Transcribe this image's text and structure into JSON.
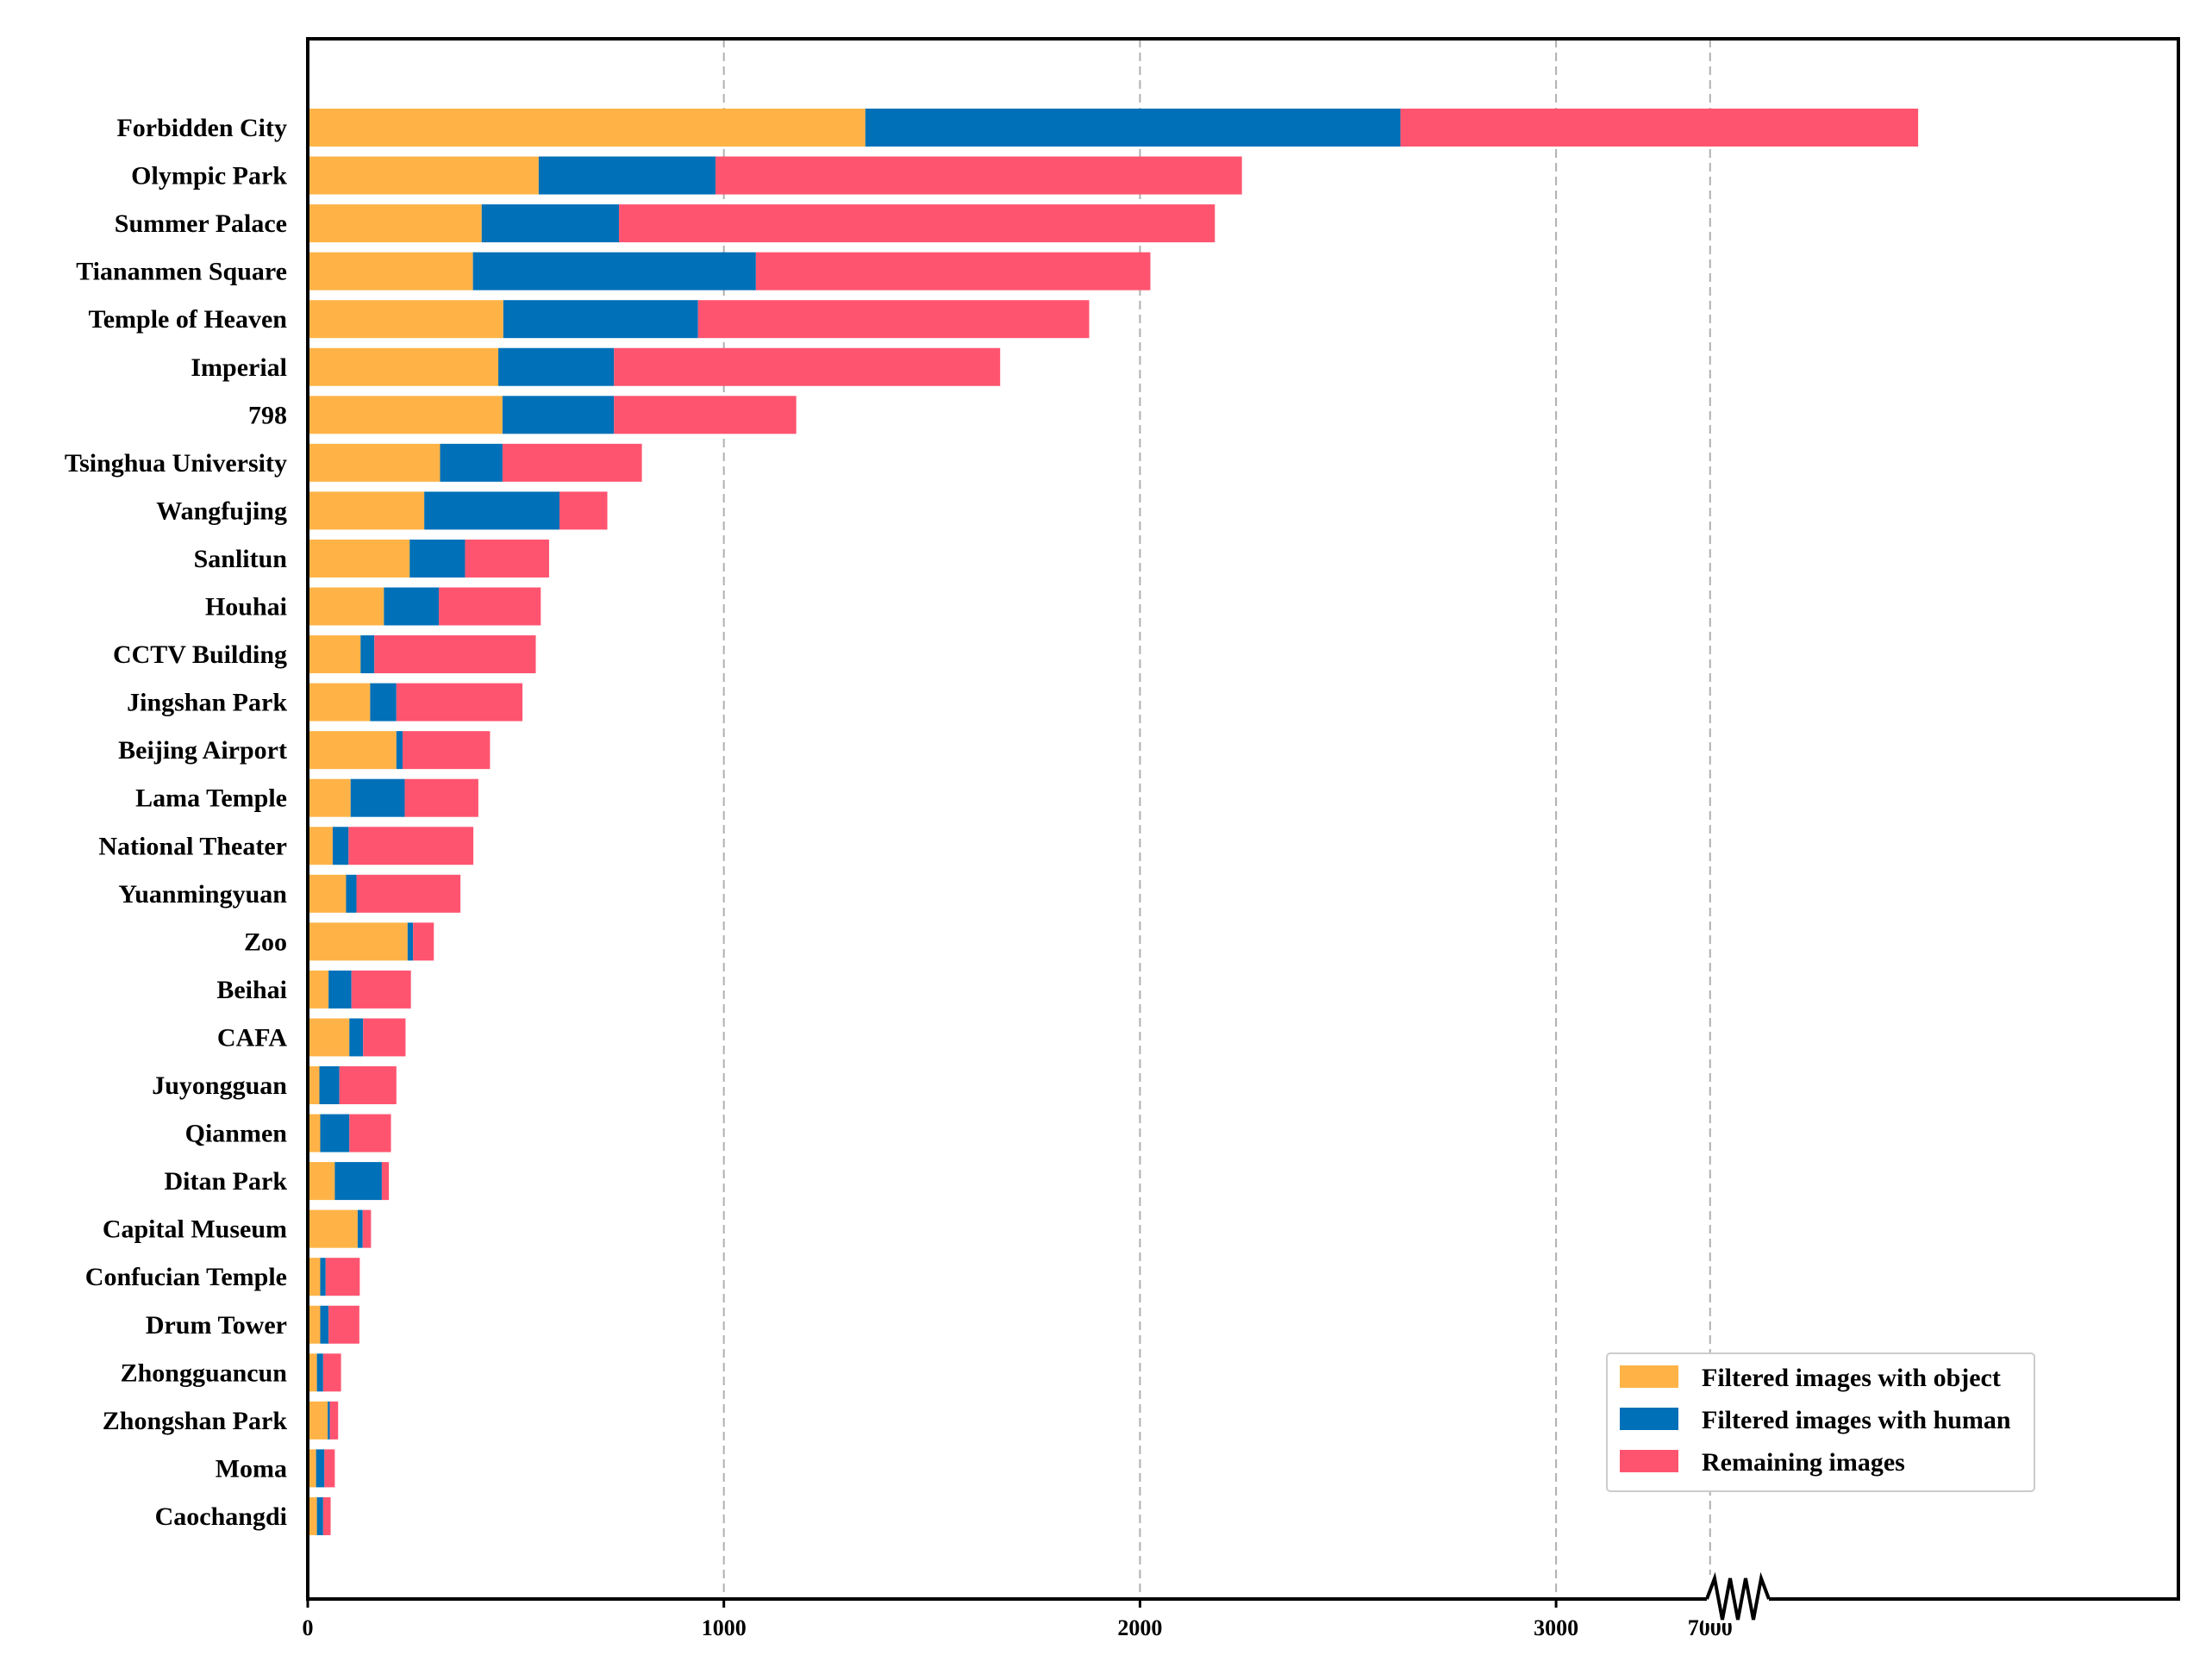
{
  "chart_data": {
    "type": "bar",
    "orientation": "horizontal",
    "stacked": true,
    "categories": [
      "Forbidden City",
      "Olympic Park",
      "Summer Palace",
      "Tiananmen Square",
      "Temple of Heaven",
      "Imperial",
      "798",
      "Tsinghua University",
      "Wangfujing",
      "Sanlitun",
      "Houhai",
      "CCTV Building",
      "Jingshan Park",
      "Beijing Airport",
      "Lama Temple",
      "National Theater",
      "Yuanmingyuan",
      "Zoo",
      "Beihai",
      "CAFA",
      "Juyongguan",
      "Qianmen",
      "Ditan Park",
      "Capital Museum",
      "Confucian Temple",
      "Drum Tower",
      "Zhongguancun",
      "Zhongshan Park",
      "Moma",
      "Caochangdi"
    ],
    "series": [
      {
        "name": "Filtered images with object",
        "color": "#FFB347",
        "values": [
          1340,
          555,
          418,
          397,
          470,
          458,
          468,
          318,
          280,
          245,
          183,
          127,
          150,
          213,
          103,
          60,
          92,
          240,
          50,
          100,
          28,
          30,
          65,
          120,
          30,
          30,
          22,
          48,
          20,
          22
        ]
      },
      {
        "name": "Filtered images with human",
        "color": "#0070B8",
        "values": [
          1286,
          425,
          330,
          680,
          468,
          278,
          268,
          150,
          325,
          133,
          132,
          33,
          63,
          15,
          130,
          38,
          25,
          13,
          55,
          33,
          48,
          70,
          113,
          12,
          13,
          20,
          15,
          5,
          20,
          15
        ]
      },
      {
        "name": "Remaining images",
        "color": "#FF5470",
        "values": [
          4874,
          1265,
          1432,
          948,
          940,
          928,
          438,
          335,
          115,
          202,
          245,
          388,
          303,
          210,
          177,
          300,
          250,
          50,
          143,
          102,
          137,
          100,
          17,
          20,
          82,
          74,
          43,
          20,
          25,
          18
        ]
      }
    ],
    "x_ticks": [
      "0",
      "1000",
      "2000",
      "3000",
      "7000"
    ],
    "x_tick_values": [
      0,
      1000,
      2000,
      3000,
      7000
    ],
    "x_axis_break": {
      "from": 3250,
      "to": 7000
    },
    "xlim": [
      0,
      7500
    ],
    "grid": "vertical dashed",
    "legend_position": "lower-right"
  }
}
